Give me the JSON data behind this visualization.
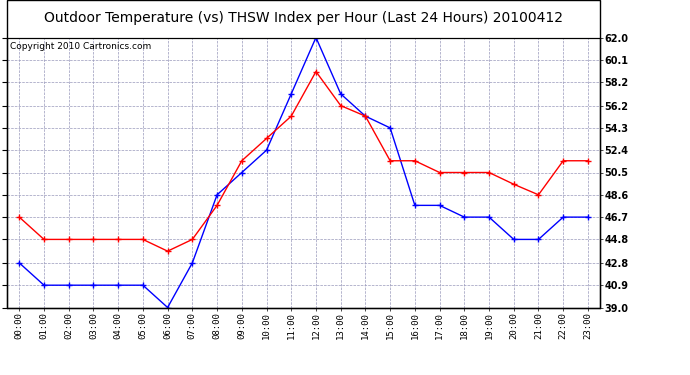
{
  "title": "Outdoor Temperature (vs) THSW Index per Hour (Last 24 Hours) 20100412",
  "copyright": "Copyright 2010 Cartronics.com",
  "hours": [
    "00:00",
    "01:00",
    "02:00",
    "03:00",
    "04:00",
    "05:00",
    "06:00",
    "07:00",
    "08:00",
    "09:00",
    "10:00",
    "11:00",
    "12:00",
    "13:00",
    "14:00",
    "15:00",
    "16:00",
    "17:00",
    "18:00",
    "19:00",
    "20:00",
    "21:00",
    "22:00",
    "23:00"
  ],
  "temp": [
    42.8,
    40.9,
    40.9,
    40.9,
    40.9,
    40.9,
    39.0,
    42.8,
    48.6,
    50.5,
    52.4,
    57.2,
    62.0,
    57.2,
    55.3,
    54.3,
    47.7,
    47.7,
    46.7,
    46.7,
    44.8,
    44.8,
    46.7,
    46.7
  ],
  "thsw": [
    46.7,
    44.8,
    44.8,
    44.8,
    44.8,
    44.8,
    43.8,
    44.8,
    47.7,
    51.5,
    53.4,
    55.3,
    59.1,
    56.2,
    55.3,
    51.5,
    51.5,
    50.5,
    50.5,
    50.5,
    49.5,
    48.6,
    51.5,
    51.5
  ],
  "temp_color": "#0000ff",
  "thsw_color": "#ff0000",
  "ylim": [
    39.0,
    62.0
  ],
  "yticks": [
    39.0,
    40.9,
    42.8,
    44.8,
    46.7,
    48.6,
    50.5,
    52.4,
    54.3,
    56.2,
    58.2,
    60.1,
    62.0
  ],
  "bg_color": "#ffffff",
  "grid_color": "#9999bb",
  "title_fontsize": 10,
  "copyright_fontsize": 6.5
}
